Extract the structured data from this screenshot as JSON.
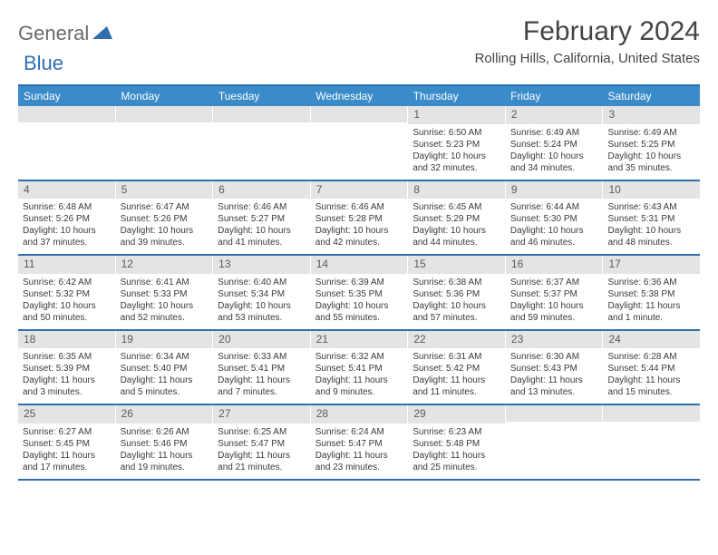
{
  "logo": {
    "general": "General",
    "blue": "Blue"
  },
  "title": "February 2024",
  "location": "Rolling Hills, California, United States",
  "colors": {
    "header_bg": "#3a8bc9",
    "border": "#2f6fb0",
    "daynum_bg": "#e4e4e4",
    "text": "#333333"
  },
  "day_names": [
    "Sunday",
    "Monday",
    "Tuesday",
    "Wednesday",
    "Thursday",
    "Friday",
    "Saturday"
  ],
  "weeks": [
    [
      {
        "day": "",
        "sunrise": "",
        "sunset": "",
        "daylight": ""
      },
      {
        "day": "",
        "sunrise": "",
        "sunset": "",
        "daylight": ""
      },
      {
        "day": "",
        "sunrise": "",
        "sunset": "",
        "daylight": ""
      },
      {
        "day": "",
        "sunrise": "",
        "sunset": "",
        "daylight": ""
      },
      {
        "day": "1",
        "sunrise": "Sunrise: 6:50 AM",
        "sunset": "Sunset: 5:23 PM",
        "daylight": "Daylight: 10 hours and 32 minutes."
      },
      {
        "day": "2",
        "sunrise": "Sunrise: 6:49 AM",
        "sunset": "Sunset: 5:24 PM",
        "daylight": "Daylight: 10 hours and 34 minutes."
      },
      {
        "day": "3",
        "sunrise": "Sunrise: 6:49 AM",
        "sunset": "Sunset: 5:25 PM",
        "daylight": "Daylight: 10 hours and 35 minutes."
      }
    ],
    [
      {
        "day": "4",
        "sunrise": "Sunrise: 6:48 AM",
        "sunset": "Sunset: 5:26 PM",
        "daylight": "Daylight: 10 hours and 37 minutes."
      },
      {
        "day": "5",
        "sunrise": "Sunrise: 6:47 AM",
        "sunset": "Sunset: 5:26 PM",
        "daylight": "Daylight: 10 hours and 39 minutes."
      },
      {
        "day": "6",
        "sunrise": "Sunrise: 6:46 AM",
        "sunset": "Sunset: 5:27 PM",
        "daylight": "Daylight: 10 hours and 41 minutes."
      },
      {
        "day": "7",
        "sunrise": "Sunrise: 6:46 AM",
        "sunset": "Sunset: 5:28 PM",
        "daylight": "Daylight: 10 hours and 42 minutes."
      },
      {
        "day": "8",
        "sunrise": "Sunrise: 6:45 AM",
        "sunset": "Sunset: 5:29 PM",
        "daylight": "Daylight: 10 hours and 44 minutes."
      },
      {
        "day": "9",
        "sunrise": "Sunrise: 6:44 AM",
        "sunset": "Sunset: 5:30 PM",
        "daylight": "Daylight: 10 hours and 46 minutes."
      },
      {
        "day": "10",
        "sunrise": "Sunrise: 6:43 AM",
        "sunset": "Sunset: 5:31 PM",
        "daylight": "Daylight: 10 hours and 48 minutes."
      }
    ],
    [
      {
        "day": "11",
        "sunrise": "Sunrise: 6:42 AM",
        "sunset": "Sunset: 5:32 PM",
        "daylight": "Daylight: 10 hours and 50 minutes."
      },
      {
        "day": "12",
        "sunrise": "Sunrise: 6:41 AM",
        "sunset": "Sunset: 5:33 PM",
        "daylight": "Daylight: 10 hours and 52 minutes."
      },
      {
        "day": "13",
        "sunrise": "Sunrise: 6:40 AM",
        "sunset": "Sunset: 5:34 PM",
        "daylight": "Daylight: 10 hours and 53 minutes."
      },
      {
        "day": "14",
        "sunrise": "Sunrise: 6:39 AM",
        "sunset": "Sunset: 5:35 PM",
        "daylight": "Daylight: 10 hours and 55 minutes."
      },
      {
        "day": "15",
        "sunrise": "Sunrise: 6:38 AM",
        "sunset": "Sunset: 5:36 PM",
        "daylight": "Daylight: 10 hours and 57 minutes."
      },
      {
        "day": "16",
        "sunrise": "Sunrise: 6:37 AM",
        "sunset": "Sunset: 5:37 PM",
        "daylight": "Daylight: 10 hours and 59 minutes."
      },
      {
        "day": "17",
        "sunrise": "Sunrise: 6:36 AM",
        "sunset": "Sunset: 5:38 PM",
        "daylight": "Daylight: 11 hours and 1 minute."
      }
    ],
    [
      {
        "day": "18",
        "sunrise": "Sunrise: 6:35 AM",
        "sunset": "Sunset: 5:39 PM",
        "daylight": "Daylight: 11 hours and 3 minutes."
      },
      {
        "day": "19",
        "sunrise": "Sunrise: 6:34 AM",
        "sunset": "Sunset: 5:40 PM",
        "daylight": "Daylight: 11 hours and 5 minutes."
      },
      {
        "day": "20",
        "sunrise": "Sunrise: 6:33 AM",
        "sunset": "Sunset: 5:41 PM",
        "daylight": "Daylight: 11 hours and 7 minutes."
      },
      {
        "day": "21",
        "sunrise": "Sunrise: 6:32 AM",
        "sunset": "Sunset: 5:41 PM",
        "daylight": "Daylight: 11 hours and 9 minutes."
      },
      {
        "day": "22",
        "sunrise": "Sunrise: 6:31 AM",
        "sunset": "Sunset: 5:42 PM",
        "daylight": "Daylight: 11 hours and 11 minutes."
      },
      {
        "day": "23",
        "sunrise": "Sunrise: 6:30 AM",
        "sunset": "Sunset: 5:43 PM",
        "daylight": "Daylight: 11 hours and 13 minutes."
      },
      {
        "day": "24",
        "sunrise": "Sunrise: 6:28 AM",
        "sunset": "Sunset: 5:44 PM",
        "daylight": "Daylight: 11 hours and 15 minutes."
      }
    ],
    [
      {
        "day": "25",
        "sunrise": "Sunrise: 6:27 AM",
        "sunset": "Sunset: 5:45 PM",
        "daylight": "Daylight: 11 hours and 17 minutes."
      },
      {
        "day": "26",
        "sunrise": "Sunrise: 6:26 AM",
        "sunset": "Sunset: 5:46 PM",
        "daylight": "Daylight: 11 hours and 19 minutes."
      },
      {
        "day": "27",
        "sunrise": "Sunrise: 6:25 AM",
        "sunset": "Sunset: 5:47 PM",
        "daylight": "Daylight: 11 hours and 21 minutes."
      },
      {
        "day": "28",
        "sunrise": "Sunrise: 6:24 AM",
        "sunset": "Sunset: 5:47 PM",
        "daylight": "Daylight: 11 hours and 23 minutes."
      },
      {
        "day": "29",
        "sunrise": "Sunrise: 6:23 AM",
        "sunset": "Sunset: 5:48 PM",
        "daylight": "Daylight: 11 hours and 25 minutes."
      },
      {
        "day": "",
        "sunrise": "",
        "sunset": "",
        "daylight": ""
      },
      {
        "day": "",
        "sunrise": "",
        "sunset": "",
        "daylight": ""
      }
    ]
  ]
}
